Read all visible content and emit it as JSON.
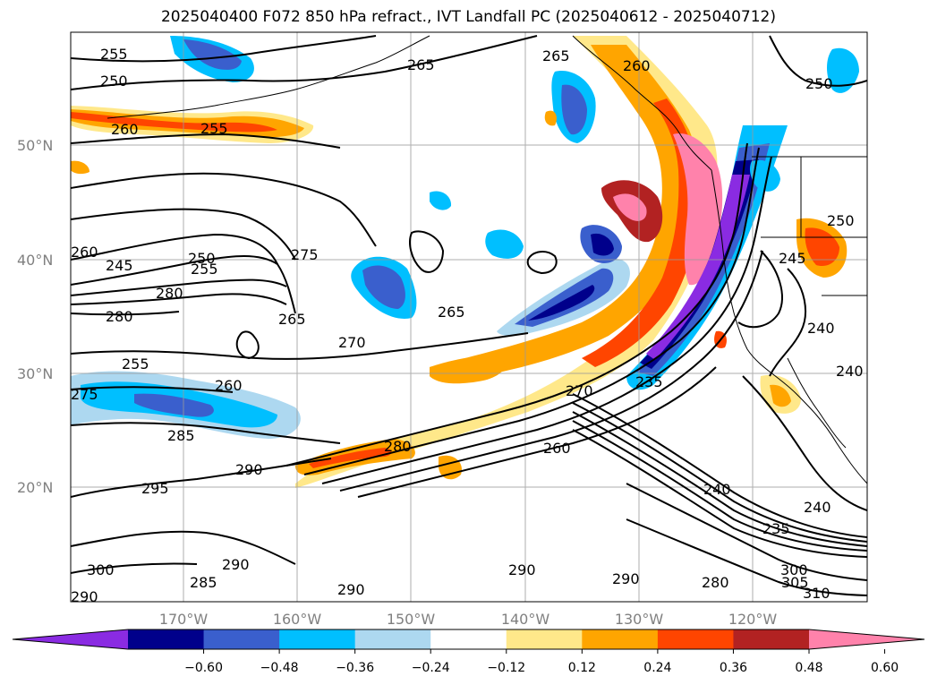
{
  "title": "2025040400 F072 850 hPa refract., IVT Landfall PC (2025040612 - 2025040712)",
  "lat_labels": [
    "50°N",
    "40°N",
    "30°N",
    "20°N"
  ],
  "lon_labels": [
    "170°W",
    "160°W",
    "150°W",
    "140°W",
    "130°W",
    "120°W"
  ],
  "colorbar": {
    "colors": [
      "#8a2be2",
      "#00008b",
      "#3a5fcd",
      "#00bfff",
      "#add8f0",
      "#ffffff",
      "#ffe88a",
      "#ffa500",
      "#ff4500",
      "#b22222",
      "#ff82ab"
    ],
    "tick_labels": [
      "−0.60",
      "−0.48",
      "−0.36",
      "−0.24",
      "−0.12",
      "0.12",
      "0.24",
      "0.36",
      "0.48",
      "0.60"
    ]
  },
  "contour_labels": [
    "255",
    "250",
    "260",
    "255",
    "265",
    "265",
    "260",
    "250",
    "260",
    "250",
    "255",
    "275",
    "280",
    "280",
    "245",
    "265",
    "270",
    "265",
    "250",
    "245",
    "240",
    "255",
    "260",
    "275",
    "285",
    "270",
    "235",
    "260",
    "290",
    "280",
    "295",
    "240",
    "290",
    "285",
    "240",
    "300",
    "235",
    "290",
    "290",
    "290",
    "280",
    "300",
    "305",
    "310",
    "290",
    "240"
  ]
}
